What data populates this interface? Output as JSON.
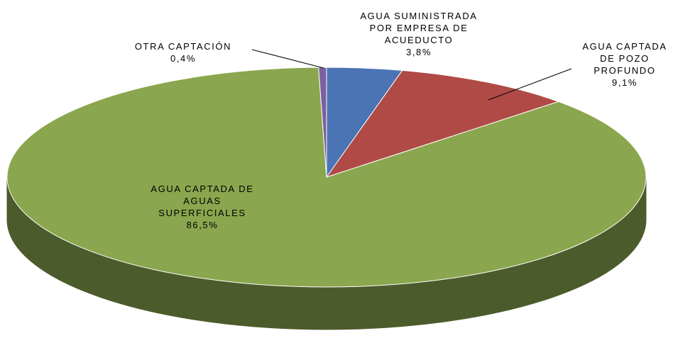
{
  "chart_data": {
    "type": "pie3d",
    "categories": [
      "AGUA SUMINISTRADA POR EMPRESA DE ACUEDUCTO",
      "AGUA CAPTADA DE POZO PROFUNDO",
      "AGUA CAPTADA DE AGUAS SUPERFICIALES",
      "OTRA CAPTACIÓN"
    ],
    "values": [
      3.8,
      9.1,
      86.5,
      0.4
    ],
    "value_labels": [
      "3,8%",
      "9,1%",
      "86,5%",
      "0,4%"
    ],
    "colors": [
      "#4a74b4",
      "#b04a47",
      "#8aa64e",
      "#7b5fa0"
    ]
  }
}
